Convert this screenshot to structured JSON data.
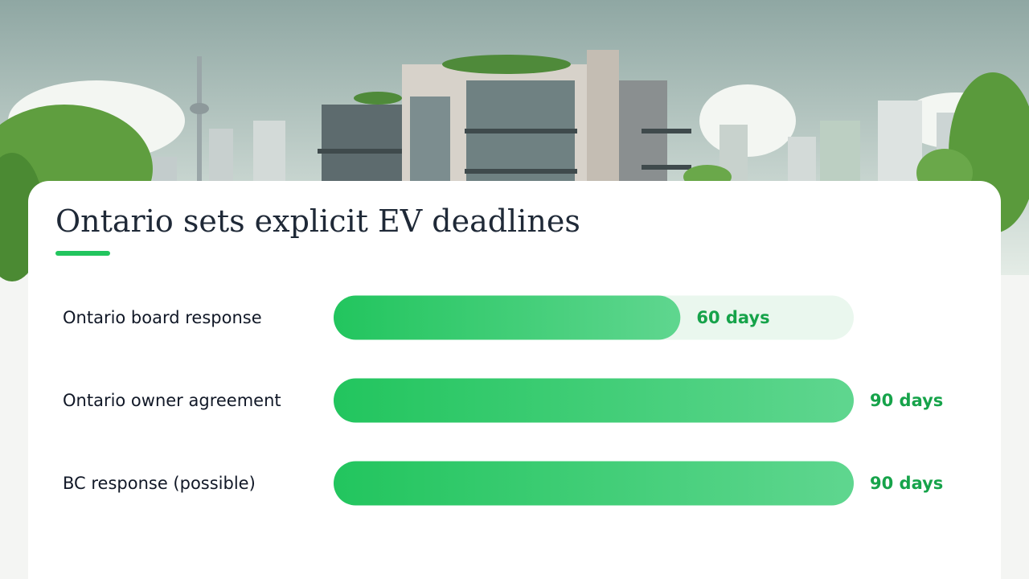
{
  "chart_data": {
    "type": "bar",
    "orientation": "horizontal",
    "title": "Ontario sets explicit EV deadlines",
    "categories": [
      "Ontario board response",
      "Ontario owner agreement",
      "BC response (possible)"
    ],
    "values": [
      60,
      90,
      90
    ],
    "value_labels": [
      "60 days",
      "90 days",
      "90 days"
    ],
    "color": "#22c55e",
    "xlim": [
      0,
      90
    ]
  }
}
